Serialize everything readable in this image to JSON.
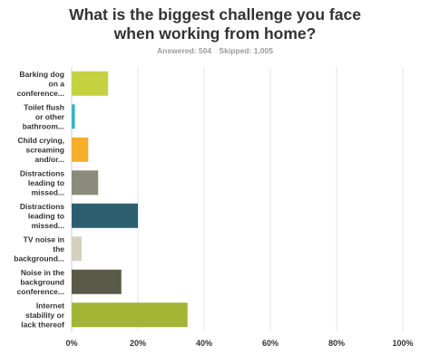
{
  "header": {
    "title_line1": "What is the biggest challenge you face",
    "title_line2": "when working from home?",
    "answered": "Answered: 504",
    "skipped": "Skipped: 1,005"
  },
  "chart_data": {
    "type": "bar",
    "orientation": "horizontal",
    "title": "What is the biggest challenge you face when working from home?",
    "categories": [
      [
        "Barking dog",
        "on a",
        "conference..."
      ],
      [
        "Toilet flush",
        "or other",
        "bathroom..."
      ],
      [
        "Child crying,",
        "screaming",
        "and/or..."
      ],
      [
        "Distractions",
        "leading to",
        "missed..."
      ],
      [
        "Distractions",
        "leading to",
        "missed..."
      ],
      [
        "TV noise in",
        "the",
        "background..."
      ],
      [
        "Noise in the",
        "background",
        "conference..."
      ],
      [
        "Internet",
        "stability or",
        "lack thereof"
      ]
    ],
    "values": [
      11,
      1,
      5,
      8,
      20,
      3,
      15,
      35
    ],
    "colors": [
      "#c5d23f",
      "#3bb4cb",
      "#f6af29",
      "#8b8b7b",
      "#2c5f6e",
      "#d4d0c0",
      "#5a5a48",
      "#a3b535"
    ],
    "x_ticks": [
      "0%",
      "20%",
      "40%",
      "60%",
      "80%",
      "100%"
    ],
    "xlim": [
      0,
      100
    ],
    "grid": true,
    "unit": "%"
  }
}
